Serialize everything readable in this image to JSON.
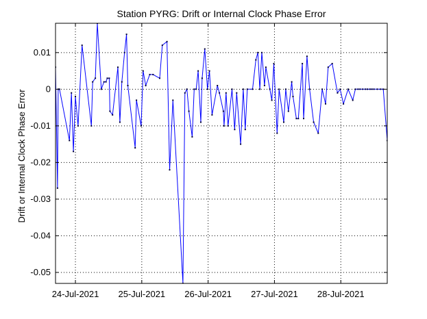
{
  "chart_data": {
    "type": "line",
    "title": "Station PYRG: Drift or Internal Clock Phase Error",
    "xlabel": "",
    "ylabel": "Drift or Internal Clock Phase Error",
    "x_tick_labels": [
      "24-Jul-2021",
      "25-Jul-2021",
      "26-Jul-2021",
      "27-Jul-2021",
      "28-Jul-2021"
    ],
    "x_tick_days": [
      24,
      25,
      26,
      27,
      28
    ],
    "y_ticks": [
      0.01,
      0,
      -0.01,
      -0.02,
      -0.03,
      -0.04,
      -0.05
    ],
    "y_tick_labels": [
      "0.01",
      "0",
      "-0.01",
      "-0.02",
      "-0.03",
      "-0.04",
      "-0.05"
    ],
    "xlim_days": [
      23.7,
      28.7
    ],
    "ylim": [
      -0.053,
      0.018
    ],
    "grid": true,
    "line_color": "#0000ff",
    "series": [
      {
        "x_days": [
          23.7,
          23.73,
          23.74,
          23.76,
          23.91,
          23.94,
          23.97,
          24.0,
          24.04,
          24.1,
          24.24,
          24.26,
          24.3,
          24.33,
          24.39,
          24.43,
          24.46,
          24.48,
          24.51,
          24.52,
          24.56,
          24.64,
          24.67,
          24.7,
          24.74,
          24.77,
          24.79,
          24.9,
          24.92,
          24.99,
          25.02,
          25.06,
          25.12,
          25.17,
          25.27,
          25.31,
          25.38,
          25.42,
          25.47,
          25.62,
          25.65,
          25.68,
          25.71,
          25.76,
          25.79,
          25.82,
          25.85,
          25.89,
          25.91,
          25.95,
          25.99,
          26.02,
          26.06,
          26.14,
          26.17,
          26.23,
          26.24,
          26.27,
          26.3,
          26.36,
          26.4,
          26.43,
          26.49,
          26.53,
          26.56,
          26.59,
          26.67,
          26.72,
          26.75,
          26.78,
          26.81,
          26.85,
          26.87,
          26.93,
          26.96,
          26.99,
          27.04,
          27.07,
          27.14,
          27.17,
          27.21,
          27.26,
          27.28,
          27.33,
          27.36,
          27.42,
          27.44,
          27.49,
          27.53,
          27.59,
          27.66,
          27.72,
          27.77,
          27.81,
          27.87,
          27.95,
          27.99,
          28.04,
          28.11,
          28.18,
          28.22,
          28.26,
          28.29,
          28.33,
          28.37,
          28.4,
          28.44,
          28.47,
          28.5,
          28.55,
          28.6,
          28.64,
          28.7
        ],
        "y": [
          0.006,
          -0.027,
          0.0,
          0.0,
          -0.014,
          -0.001,
          -0.017,
          -0.002,
          -0.01,
          0.012,
          -0.01,
          0.002,
          0.003,
          0.018,
          0.0,
          0.002,
          0.002,
          0.003,
          0.003,
          -0.006,
          -0.007,
          0.006,
          -0.009,
          0.002,
          0.01,
          0.015,
          0.001,
          -0.016,
          -0.003,
          -0.01,
          0.005,
          0.001,
          0.004,
          0.004,
          0.003,
          0.012,
          0.013,
          -0.022,
          -0.003,
          -0.053,
          -0.001,
          0.0,
          -0.006,
          -0.013,
          0.0,
          0.0,
          0.005,
          -0.009,
          0.003,
          0.011,
          0.0,
          0.005,
          -0.007,
          0.001,
          -0.001,
          -0.006,
          -0.01,
          -0.001,
          -0.01,
          0.0,
          -0.011,
          -0.001,
          -0.015,
          0.0,
          -0.011,
          0.0,
          0.0,
          0.008,
          0.01,
          0.0,
          0.01,
          0.001,
          0.006,
          0.0,
          -0.003,
          0.007,
          -0.012,
          0.0,
          -0.009,
          0.0,
          -0.006,
          0.002,
          -0.002,
          -0.008,
          -0.008,
          0.007,
          -0.008,
          0.009,
          0.0,
          -0.009,
          -0.012,
          0.0,
          -0.004,
          0.006,
          0.007,
          -0.001,
          0.0,
          -0.004,
          0.0,
          -0.003,
          0.0,
          0.0,
          0.0,
          0.0,
          0.0,
          0.0,
          0.0,
          0.0,
          0.0,
          0.0,
          0.0,
          0.0,
          -0.014
        ]
      }
    ]
  }
}
